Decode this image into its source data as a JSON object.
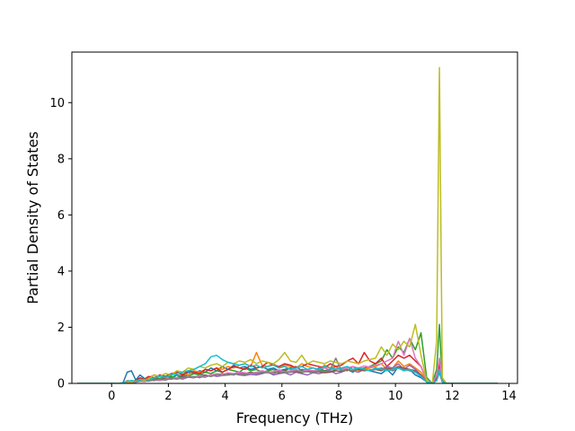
{
  "chart_data": {
    "type": "line",
    "title": "",
    "xlabel": "Frequency (THz)",
    "ylabel": "Partial Density of States",
    "xlim": [
      -1.4,
      14.3
    ],
    "ylim": [
      0,
      11.8
    ],
    "xticks": [
      "0",
      "2",
      "4",
      "6",
      "8",
      "10",
      "12",
      "14"
    ],
    "yticks": [
      "0",
      "2",
      "4",
      "6",
      "8",
      "10"
    ],
    "grid": false,
    "legend": "none",
    "colors": [
      "#1f77b4",
      "#ff7f0e",
      "#2ca02c",
      "#d62728",
      "#9467bd",
      "#8c564b",
      "#e377c2",
      "#7f7f7f",
      "#bcbd22",
      "#17becf"
    ],
    "x": [
      -1.2,
      0.0,
      0.2,
      0.4,
      0.55,
      0.7,
      0.85,
      1.0,
      1.15,
      1.3,
      1.5,
      1.7,
      1.9,
      2.1,
      2.3,
      2.5,
      2.7,
      2.9,
      3.1,
      3.3,
      3.5,
      3.7,
      3.9,
      4.1,
      4.3,
      4.5,
      4.7,
      4.9,
      5.1,
      5.3,
      5.5,
      5.7,
      5.9,
      6.1,
      6.3,
      6.5,
      6.7,
      6.9,
      7.1,
      7.3,
      7.5,
      7.7,
      7.9,
      8.1,
      8.3,
      8.5,
      8.7,
      8.9,
      9.1,
      9.3,
      9.5,
      9.7,
      9.9,
      10.1,
      10.3,
      10.5,
      10.7,
      10.9,
      11.1,
      11.3,
      11.45,
      11.55,
      11.65,
      11.8,
      12.0,
      13.6
    ],
    "series": [
      {
        "values": [
          0,
          0,
          0,
          0.02,
          0.4,
          0.45,
          0.12,
          0.3,
          0.18,
          0.1,
          0.2,
          0.15,
          0.25,
          0.2,
          0.3,
          0.25,
          0.4,
          0.35,
          0.45,
          0.4,
          0.55,
          0.45,
          0.6,
          0.5,
          0.65,
          0.55,
          0.6,
          0.5,
          0.55,
          0.6,
          0.5,
          0.55,
          0.45,
          0.5,
          0.55,
          0.6,
          0.45,
          0.5,
          0.4,
          0.55,
          0.45,
          0.5,
          0.6,
          0.45,
          0.5,
          0.4,
          0.55,
          0.5,
          0.45,
          0.4,
          0.35,
          0.5,
          0.3,
          0.6,
          0.45,
          0.5,
          0.3,
          0.2,
          0.05,
          0,
          0.3,
          0.8,
          0.05,
          0,
          0,
          0
        ]
      },
      {
        "values": [
          0,
          0,
          0,
          0,
          0.1,
          0.08,
          0.05,
          0.15,
          0.1,
          0.2,
          0.3,
          0.25,
          0.35,
          0.3,
          0.4,
          0.35,
          0.3,
          0.45,
          0.4,
          0.5,
          0.45,
          0.55,
          0.5,
          0.6,
          0.55,
          0.65,
          0.7,
          0.6,
          1.1,
          0.65,
          0.6,
          0.7,
          0.55,
          0.65,
          0.6,
          0.55,
          0.7,
          0.6,
          0.55,
          0.5,
          0.65,
          0.55,
          0.6,
          0.5,
          0.55,
          0.6,
          0.45,
          0.5,
          0.55,
          0.6,
          0.7,
          0.5,
          0.55,
          0.8,
          0.6,
          0.7,
          0.55,
          0.4,
          0.1,
          0,
          0.2,
          0.6,
          0.05,
          0,
          0,
          0
        ]
      },
      {
        "values": [
          0,
          0,
          0,
          0,
          0.05,
          0.1,
          0.08,
          0.12,
          0.1,
          0.15,
          0.2,
          0.18,
          0.22,
          0.25,
          0.2,
          0.3,
          0.25,
          0.35,
          0.3,
          0.4,
          0.35,
          0.45,
          0.4,
          0.5,
          0.45,
          0.4,
          0.55,
          0.45,
          0.5,
          0.4,
          0.45,
          0.5,
          0.4,
          0.45,
          0.55,
          0.4,
          0.5,
          0.45,
          0.4,
          0.5,
          0.45,
          0.4,
          0.5,
          0.55,
          0.45,
          0.6,
          0.5,
          0.55,
          0.6,
          0.7,
          0.8,
          1.2,
          0.9,
          1.3,
          1.1,
          1.6,
          1.2,
          1.8,
          0.2,
          0,
          0.5,
          2.1,
          0.1,
          0,
          0,
          0
        ]
      },
      {
        "values": [
          0,
          0,
          0,
          0,
          0.08,
          0.06,
          0.1,
          0.2,
          0.15,
          0.25,
          0.2,
          0.3,
          0.25,
          0.35,
          0.4,
          0.3,
          0.45,
          0.4,
          0.35,
          0.5,
          0.45,
          0.55,
          0.4,
          0.5,
          0.6,
          0.55,
          0.5,
          0.65,
          0.55,
          0.6,
          0.75,
          0.65,
          0.6,
          0.7,
          0.65,
          0.55,
          0.6,
          0.7,
          0.65,
          0.6,
          0.55,
          0.7,
          0.6,
          0.65,
          0.8,
          0.9,
          0.7,
          1.1,
          0.8,
          0.7,
          0.9,
          0.6,
          0.8,
          1.0,
          0.9,
          1.0,
          0.8,
          0.6,
          0.1,
          0,
          0.2,
          0.7,
          0.05,
          0,
          0,
          0
        ]
      },
      {
        "values": [
          0,
          0,
          0,
          0,
          0.05,
          0.04,
          0.06,
          0.1,
          0.08,
          0.12,
          0.1,
          0.15,
          0.12,
          0.18,
          0.2,
          0.15,
          0.22,
          0.2,
          0.25,
          0.22,
          0.3,
          0.25,
          0.28,
          0.3,
          0.35,
          0.3,
          0.28,
          0.32,
          0.3,
          0.35,
          0.4,
          0.3,
          0.35,
          0.38,
          0.3,
          0.4,
          0.35,
          0.3,
          0.38,
          0.35,
          0.4,
          0.45,
          0.35,
          0.4,
          0.5,
          0.45,
          0.4,
          0.5,
          0.45,
          0.55,
          0.5,
          0.6,
          0.55,
          0.7,
          0.5,
          0.65,
          0.5,
          0.3,
          0.05,
          0,
          0.1,
          0.5,
          0.05,
          0,
          0,
          0
        ]
      },
      {
        "values": [
          0,
          0,
          0,
          0,
          0.05,
          0.06,
          0.04,
          0.08,
          0.1,
          0.12,
          0.15,
          0.12,
          0.18,
          0.15,
          0.2,
          0.22,
          0.25,
          0.2,
          0.28,
          0.3,
          0.25,
          0.32,
          0.3,
          0.35,
          0.3,
          0.38,
          0.35,
          0.4,
          0.35,
          0.38,
          0.42,
          0.4,
          0.38,
          0.45,
          0.4,
          0.42,
          0.38,
          0.45,
          0.4,
          0.42,
          0.38,
          0.4,
          0.45,
          0.42,
          0.48,
          0.45,
          0.5,
          0.45,
          0.48,
          0.5,
          0.45,
          0.55,
          0.5,
          0.6,
          0.55,
          0.5,
          0.45,
          0.3,
          0.05,
          0,
          0.1,
          0.4,
          0.05,
          0,
          0,
          0
        ]
      },
      {
        "values": [
          0,
          0,
          0,
          0,
          0.04,
          0.05,
          0.06,
          0.08,
          0.06,
          0.1,
          0.12,
          0.1,
          0.15,
          0.18,
          0.2,
          0.18,
          0.25,
          0.22,
          0.28,
          0.25,
          0.3,
          0.35,
          0.3,
          0.38,
          0.35,
          0.4,
          0.38,
          0.35,
          0.4,
          0.45,
          0.4,
          0.42,
          0.48,
          0.4,
          0.45,
          0.5,
          0.42,
          0.48,
          0.45,
          0.5,
          0.55,
          0.48,
          0.52,
          0.5,
          0.55,
          0.6,
          0.55,
          0.62,
          0.58,
          0.65,
          0.7,
          0.8,
          0.9,
          1.5,
          1.0,
          1.6,
          0.9,
          0.6,
          0.1,
          0,
          0.3,
          0.9,
          0.05,
          0,
          0,
          0
        ]
      },
      {
        "values": [
          0,
          0,
          0,
          0,
          0.05,
          0.04,
          0.05,
          0.08,
          0.1,
          0.08,
          0.12,
          0.15,
          0.12,
          0.18,
          0.15,
          0.2,
          0.22,
          0.25,
          0.2,
          0.28,
          0.25,
          0.3,
          0.35,
          0.3,
          0.32,
          0.35,
          0.3,
          0.38,
          0.35,
          0.4,
          0.38,
          0.35,
          0.42,
          0.38,
          0.4,
          0.45,
          0.4,
          0.42,
          0.38,
          0.45,
          0.42,
          0.5,
          0.9,
          0.45,
          0.5,
          0.45,
          0.55,
          0.5,
          0.45,
          0.5,
          0.55,
          0.5,
          0.45,
          0.55,
          0.5,
          0.45,
          0.4,
          0.25,
          0.05,
          0,
          0.1,
          0.4,
          0.05,
          0,
          0,
          0
        ]
      },
      {
        "values": [
          0,
          0,
          0,
          0,
          0.06,
          0.05,
          0.08,
          0.12,
          0.1,
          0.15,
          0.3,
          0.25,
          0.35,
          0.3,
          0.45,
          0.4,
          0.55,
          0.5,
          0.6,
          0.55,
          0.65,
          0.7,
          0.6,
          0.75,
          0.7,
          0.8,
          0.75,
          0.85,
          0.7,
          0.8,
          0.75,
          0.7,
          0.85,
          1.1,
          0.8,
          0.75,
          1.0,
          0.7,
          0.8,
          0.75,
          0.7,
          0.8,
          0.75,
          0.7,
          0.8,
          0.75,
          0.7,
          0.8,
          0.85,
          0.9,
          1.3,
          1.0,
          1.4,
          1.2,
          1.5,
          1.3,
          2.1,
          1.0,
          0.1,
          0,
          1.5,
          11.25,
          0.2,
          0,
          0,
          0
        ]
      },
      {
        "values": [
          0,
          0,
          0,
          0,
          0.08,
          0.1,
          0.06,
          0.12,
          0.15,
          0.12,
          0.2,
          0.25,
          0.22,
          0.3,
          0.35,
          0.4,
          0.45,
          0.5,
          0.6,
          0.7,
          0.95,
          1.0,
          0.85,
          0.75,
          0.7,
          0.65,
          0.7,
          0.6,
          0.65,
          0.55,
          0.6,
          0.65,
          0.55,
          0.6,
          0.5,
          0.55,
          0.6,
          0.5,
          0.55,
          0.5,
          0.6,
          0.55,
          0.5,
          0.55,
          0.6,
          0.5,
          0.55,
          0.5,
          0.45,
          0.55,
          0.5,
          0.45,
          0.5,
          0.55,
          0.45,
          0.5,
          0.4,
          0.25,
          0.05,
          0,
          0.1,
          0.5,
          0.05,
          0,
          0,
          0
        ]
      }
    ]
  }
}
